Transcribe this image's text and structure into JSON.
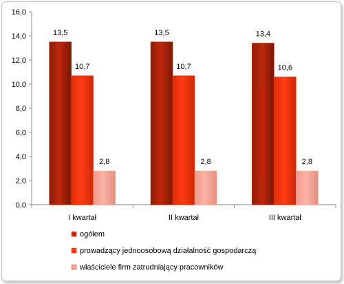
{
  "chart_data": {
    "type": "bar",
    "categories": [
      "I kwartał",
      "II kwartał",
      "III kwartał"
    ],
    "series": [
      {
        "name": "ogółem",
        "values": [
          13.5,
          13.5,
          13.4
        ],
        "labels": [
          "13,5",
          "13,5",
          "13,4"
        ],
        "color": "#c0260b"
      },
      {
        "name": "prowadzący jednoosobową działalność gospodarczą",
        "values": [
          10.7,
          10.7,
          10.6
        ],
        "labels": [
          "10,7",
          "10,7",
          "10,6"
        ],
        "color": "#ff3a12"
      },
      {
        "name": "właściciele firm zatrudniający pracowników",
        "values": [
          2.8,
          2.8,
          2.8
        ],
        "labels": [
          "2,8",
          "2,8",
          "2,8"
        ],
        "color": "#f7a394"
      }
    ],
    "yticks": [
      "0,0",
      "2,0",
      "4,0",
      "6,0",
      "8,0",
      "10,0",
      "12,0",
      "14,0",
      "16,0"
    ],
    "ylim": [
      0,
      16
    ],
    "grid": false,
    "legend_position": "bottom"
  }
}
